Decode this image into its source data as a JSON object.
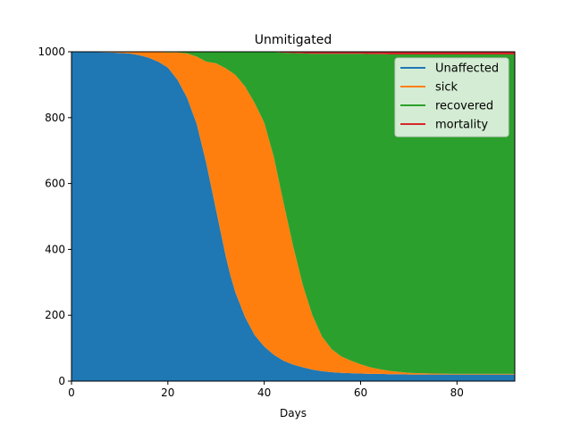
{
  "chart_data": {
    "type": "area",
    "title": "Unmitigated",
    "xlabel": "Days",
    "ylabel": "",
    "xlim": [
      0,
      92
    ],
    "ylim": [
      0,
      1000
    ],
    "xticks": [
      0,
      20,
      40,
      60,
      80
    ],
    "yticks": [
      0,
      200,
      400,
      600,
      800,
      1000
    ],
    "legend_position": "top-right",
    "stacked": true,
    "x": [
      0,
      4,
      8,
      12,
      14,
      16,
      18,
      20,
      22,
      24,
      26,
      28,
      30,
      32,
      33,
      34,
      36,
      38,
      40,
      42,
      44,
      46,
      48,
      50,
      52,
      54,
      56,
      58,
      60,
      62,
      64,
      66,
      68,
      70,
      75,
      80,
      85,
      92
    ],
    "series": [
      {
        "name": "Unaffected",
        "color": "#1f77b4",
        "values": [
          1000,
          999,
          998,
          995,
          990,
          982,
          970,
          952,
          915,
          860,
          780,
          660,
          520,
          380,
          320,
          270,
          195,
          140,
          105,
          80,
          62,
          50,
          42,
          35,
          30,
          27,
          25,
          24,
          23,
          22,
          22,
          21,
          21,
          20,
          20,
          20,
          20,
          20
        ]
      },
      {
        "name": "sick",
        "color": "#ff7f0e",
        "values": [
          0,
          1,
          2,
          5,
          9,
          17,
          29,
          46,
          83,
          135,
          205,
          310,
          445,
          570,
          620,
          660,
          700,
          705,
          680,
          600,
          480,
          360,
          250,
          165,
          105,
          70,
          50,
          38,
          28,
          20,
          14,
          10,
          7,
          5,
          3,
          2,
          2,
          2
        ]
      },
      {
        "name": "recovered",
        "color": "#2ca02c",
        "values": [
          0,
          0,
          0,
          0,
          1,
          1,
          1,
          2,
          2,
          5,
          15,
          30,
          35,
          50,
          60,
          70,
          105,
          155,
          215,
          319,
          455,
          586,
          703,
          794,
          859,
          897,
          919,
          932,
          943,
          951,
          957,
          961,
          964,
          967,
          969,
          970,
          970,
          970
        ]
      },
      {
        "name": "mortality",
        "color": "#d62728",
        "values": [
          0,
          0,
          0,
          0,
          0,
          0,
          0,
          0,
          0,
          0,
          0,
          0,
          0,
          0,
          0,
          0,
          0,
          0,
          0,
          1,
          3,
          4,
          5,
          6,
          6,
          6,
          6,
          6,
          6,
          7,
          7,
          8,
          8,
          8,
          8,
          8,
          8,
          8
        ]
      }
    ]
  }
}
